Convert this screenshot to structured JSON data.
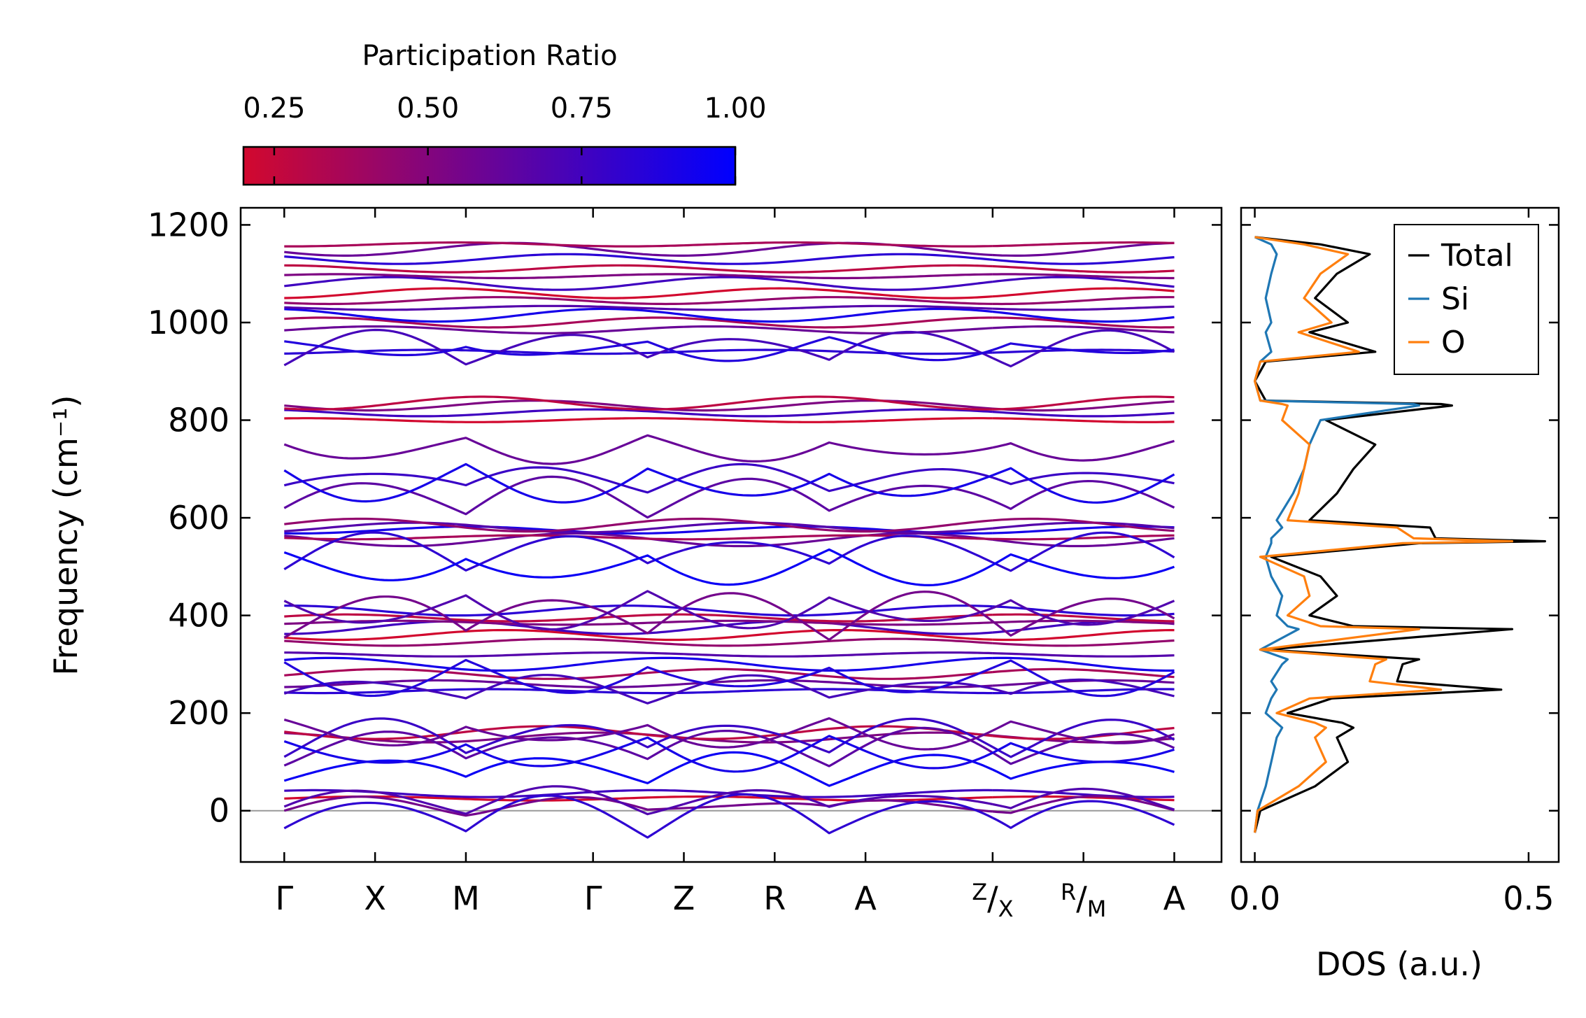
{
  "colorbar": {
    "title": "Participation Ratio",
    "ticks": [
      0.25,
      0.5,
      0.75,
      1.0
    ],
    "tick_labels": [
      "0.25",
      "0.50",
      "0.75",
      "1.00"
    ],
    "range": [
      0.2,
      1.0
    ],
    "colors": {
      "low": "#d2082e",
      "high": "#0000ff"
    }
  },
  "chart_data": [
    {
      "type": "line",
      "name": "phonon band structure",
      "ylabel": "Frequency (cm⁻¹)",
      "ylim": [
        -105,
        1235
      ],
      "yticks": [
        0,
        200,
        400,
        600,
        800,
        1000,
        1200
      ],
      "ytick_labels": [
        "0",
        "200",
        "400",
        "600",
        "800",
        "1000",
        "1200"
      ],
      "xlim": [
        -0.48,
        10.32
      ],
      "kpath": [
        {
          "label": "Γ",
          "x": 0
        },
        {
          "label": "X",
          "x": 1
        },
        {
          "label": "M",
          "x": 2
        },
        {
          "label": "Γ",
          "x": 3.4
        },
        {
          "label": "Z",
          "x": 4.4
        },
        {
          "label": "R",
          "x": 5.4
        },
        {
          "label": "A",
          "x": 6.4
        },
        {
          "label": "Z",
          "label2": "X",
          "x": 7.8
        },
        {
          "label": "R",
          "label2": "M",
          "x": 8.8
        },
        {
          "label": "A",
          "x": 9.8
        }
      ],
      "segment_breaks": [
        4.4,
        7.8
      ],
      "zero_line": 0,
      "num_segments": 7,
      "flat_bands_cm1": [
        25,
        35,
        150,
        160,
        245,
        260,
        280,
        300,
        320,
        345,
        360,
        375,
        385,
        395,
        410,
        555,
        560,
        575,
        580,
        585,
        800,
        815,
        830,
        835,
        940,
        985,
        1000,
        1015,
        1030,
        1045,
        1060,
        1080,
        1095,
        1110,
        1130,
        1150,
        1160
      ],
      "dispersive_bands_cm1": [
        {
          "start": 0,
          "end": 20
        },
        {
          "start": 0,
          "end": 40
        },
        {
          "start": -45,
          "end": 25
        },
        {
          "start": 60,
          "end": 110
        },
        {
          "start": 100,
          "end": 160
        },
        {
          "start": 120,
          "end": 180
        },
        {
          "start": 145,
          "end": 90
        },
        {
          "start": 180,
          "end": 135
        },
        {
          "start": 230,
          "end": 270
        },
        {
          "start": 300,
          "end": 245
        },
        {
          "start": 360,
          "end": 440
        },
        {
          "start": 440,
          "end": 380
        },
        {
          "start": 500,
          "end": 560
        },
        {
          "start": 525,
          "end": 470
        },
        {
          "start": 610,
          "end": 675
        },
        {
          "start": 660,
          "end": 700
        },
        {
          "start": 700,
          "end": 640
        },
        {
          "start": 760,
          "end": 720
        },
        {
          "start": 920,
          "end": 975
        },
        {
          "start": 960,
          "end": 930
        }
      ]
    },
    {
      "type": "line",
      "name": "phonon density of states",
      "xlabel": "DOS (a.u.)",
      "xlim": [
        -0.025,
        0.555
      ],
      "xticks": [
        0.0,
        0.5
      ],
      "xtick_labels": [
        "0.0",
        "0.5"
      ],
      "ylim": [
        -105,
        1235
      ],
      "legend": "top-right",
      "series": [
        {
          "name": "Total",
          "color": "#000000",
          "frequency": [
            -45,
            0,
            50,
            100,
            150,
            170,
            180,
            200,
            230,
            248,
            265,
            300,
            310,
            330,
            372,
            378,
            400,
            440,
            480,
            520,
            548,
            552,
            558,
            580,
            595,
            650,
            700,
            750,
            800,
            830,
            833,
            840,
            880,
            920,
            940,
            980,
            1000,
            1050,
            1100,
            1140,
            1160,
            1175
          ],
          "dos": [
            0.0,
            0.01,
            0.11,
            0.17,
            0.15,
            0.18,
            0.16,
            0.06,
            0.14,
            0.45,
            0.26,
            0.27,
            0.3,
            0.02,
            0.47,
            0.18,
            0.1,
            0.15,
            0.12,
            0.03,
            0.3,
            0.53,
            0.33,
            0.32,
            0.1,
            0.15,
            0.18,
            0.22,
            0.13,
            0.36,
            0.34,
            0.02,
            0.0,
            0.02,
            0.22,
            0.1,
            0.17,
            0.11,
            0.15,
            0.21,
            0.12,
            0.0
          ]
        },
        {
          "name": "Si",
          "color": "#1f77b4",
          "frequency": [
            -45,
            0,
            50,
            100,
            150,
            170,
            180,
            200,
            230,
            248,
            265,
            300,
            310,
            330,
            372,
            378,
            400,
            440,
            480,
            520,
            548,
            552,
            558,
            580,
            595,
            650,
            700,
            750,
            800,
            830,
            833,
            840,
            880,
            920,
            940,
            980,
            1000,
            1050,
            1100,
            1140,
            1160,
            1175
          ],
          "dos": [
            0.0,
            0.005,
            0.02,
            0.03,
            0.04,
            0.05,
            0.04,
            0.02,
            0.03,
            0.04,
            0.03,
            0.05,
            0.06,
            0.01,
            0.08,
            0.06,
            0.04,
            0.05,
            0.03,
            0.02,
            0.03,
            0.03,
            0.03,
            0.05,
            0.04,
            0.07,
            0.09,
            0.1,
            0.12,
            0.3,
            0.29,
            0.01,
            0.0,
            0.01,
            0.03,
            0.02,
            0.03,
            0.02,
            0.03,
            0.04,
            0.03,
            0.0
          ]
        },
        {
          "name": "O",
          "color": "#ff7f0e",
          "frequency": [
            -45,
            0,
            50,
            100,
            150,
            170,
            180,
            200,
            230,
            248,
            265,
            300,
            310,
            330,
            372,
            378,
            400,
            440,
            480,
            520,
            548,
            552,
            558,
            580,
            595,
            650,
            700,
            750,
            800,
            830,
            833,
            840,
            880,
            920,
            940,
            980,
            1000,
            1050,
            1100,
            1140,
            1160,
            1175
          ],
          "dos": [
            0.0,
            0.005,
            0.08,
            0.13,
            0.11,
            0.13,
            0.11,
            0.04,
            0.1,
            0.34,
            0.21,
            0.22,
            0.24,
            0.01,
            0.3,
            0.12,
            0.06,
            0.1,
            0.09,
            0.01,
            0.27,
            0.47,
            0.29,
            0.26,
            0.06,
            0.08,
            0.09,
            0.1,
            0.05,
            0.06,
            0.05,
            0.01,
            0.0,
            0.01,
            0.19,
            0.08,
            0.14,
            0.09,
            0.12,
            0.17,
            0.09,
            0.0
          ]
        }
      ]
    }
  ]
}
